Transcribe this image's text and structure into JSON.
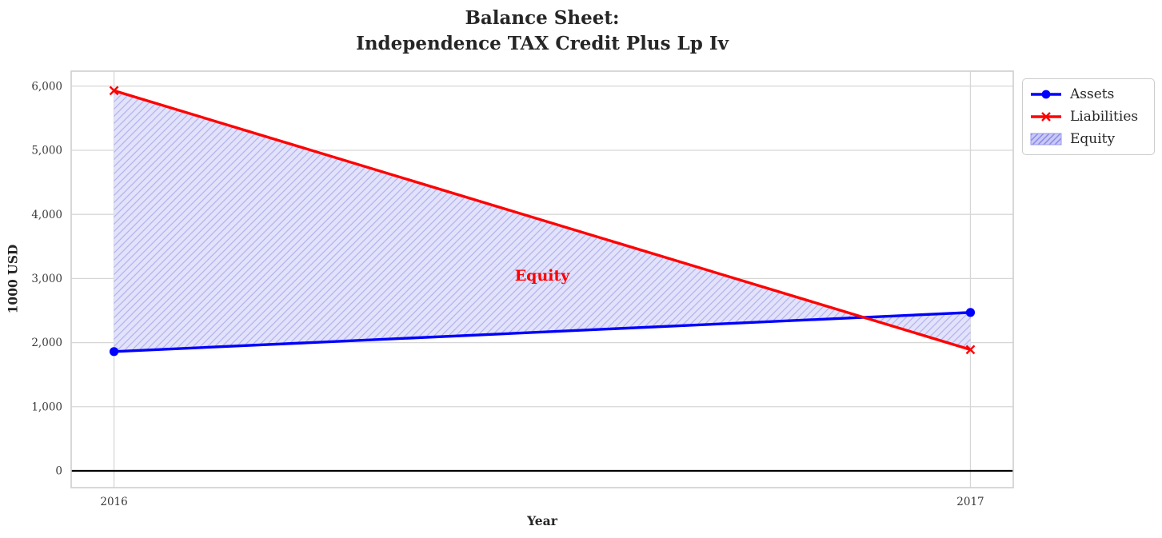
{
  "chart_data": {
    "type": "line",
    "title": "Balance Sheet:\nIndependence TAX Credit Plus Lp Iv",
    "xlabel": "Year",
    "ylabel": "1000 USD",
    "x": [
      2016,
      2017
    ],
    "xtick_labels": [
      "2016",
      "2017"
    ],
    "yticks": [
      0,
      1000,
      2000,
      3000,
      4000,
      5000,
      6000
    ],
    "ytick_labels": [
      "0",
      "1,000",
      "2,000",
      "3,000",
      "4,000",
      "5,000",
      "6,000"
    ],
    "xlim": [
      2015.95,
      2017.05
    ],
    "ylim": [
      -262,
      6234
    ],
    "grid": true,
    "zero_line": true,
    "series": [
      {
        "name": "Assets",
        "color": "#0000ff",
        "marker": "circle",
        "values": [
          1860,
          2470
        ]
      },
      {
        "name": "Liabilities",
        "color": "#ff0000",
        "marker": "x",
        "values": [
          5930,
          1890
        ]
      }
    ],
    "fill_between": {
      "name": "Equity",
      "between": [
        "Assets",
        "Liabilities"
      ],
      "fill_color": "#e2e2fa",
      "hatch": "/",
      "hatch_color": "#b4b4f0",
      "annotation": {
        "text": "Equity",
        "x": 2016.5,
        "y": 3050,
        "color": "#ff0000"
      }
    },
    "legend": {
      "position": "upper-right-outside",
      "items": [
        {
          "label": "Assets",
          "type": "line",
          "color": "#0000ff",
          "marker": "circle"
        },
        {
          "label": "Liabilities",
          "type": "line",
          "color": "#ff0000",
          "marker": "x"
        },
        {
          "label": "Equity",
          "type": "patch",
          "fill_color": "#c9c9f4",
          "hatch_color": "#8585ee",
          "edge_color": "#9a9aee"
        }
      ]
    },
    "colors": {
      "grid": "#d7d7d7",
      "spine": "#cfcfcf",
      "tick_label": "#3a3a3a",
      "zero_line": "#000000"
    }
  }
}
